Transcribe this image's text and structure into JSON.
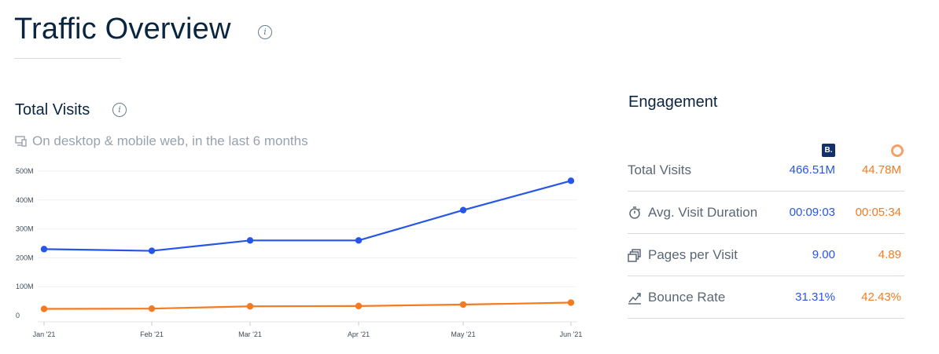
{
  "header": {
    "title": "Traffic Overview",
    "info_glyph": "i"
  },
  "total_visits": {
    "title": "Total Visits",
    "info_glyph": "i",
    "subtitle": "On desktop & mobile web, in the last 6 months"
  },
  "colors": {
    "series_1": "#2656e8",
    "series_2": "#f47b20",
    "text_dark": "#092540",
    "text_muted": "#98a2ae",
    "grid": "#eef0f2"
  },
  "chart_data": {
    "type": "line",
    "categories": [
      "Jan '21",
      "Feb '21",
      "Mar '21",
      "Apr '21",
      "May '21",
      "Jun '21"
    ],
    "series": [
      {
        "values": [
          230,
          224,
          260,
          260,
          365,
          466.51
        ]
      },
      {
        "values": [
          23,
          24,
          32,
          33,
          38,
          44.78
        ]
      }
    ],
    "y_ticks": [
      0,
      100,
      200,
      300,
      400,
      500
    ],
    "y_tick_labels": [
      "0",
      "100M",
      "200M",
      "300M",
      "400M",
      "500M"
    ],
    "ylim": [
      0,
      500
    ],
    "grid": true
  },
  "engagement": {
    "title": "Engagement",
    "legend": {
      "site1_badge": "B.",
      "site2_icon": "orange-ring-icon"
    },
    "rows": [
      {
        "label": "Total Visits",
        "icon": "none",
        "v1": "466.51M",
        "v2": "44.78M"
      },
      {
        "label": "Avg. Visit Duration",
        "icon": "stopwatch-icon",
        "v1": "00:09:03",
        "v2": "00:05:34"
      },
      {
        "label": "Pages per Visit",
        "icon": "pages-icon",
        "v1": "9.00",
        "v2": "4.89"
      },
      {
        "label": "Bounce Rate",
        "icon": "bounce-icon",
        "v1": "31.31%",
        "v2": "42.43%"
      }
    ]
  }
}
